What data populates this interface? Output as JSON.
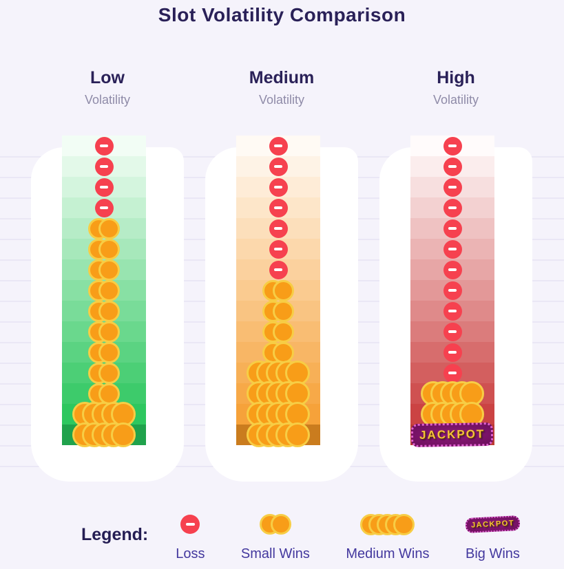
{
  "title": "Slot Volatility Comparison",
  "jackpot_text": "JACKPOT",
  "columns": [
    {
      "id": "low",
      "title": "Low",
      "subtitle": "Volatility",
      "colors": {
        "top": "#f2fdf5",
        "bottom": "#2ec75f",
        "last": "#20a24c"
      }
    },
    {
      "id": "medium",
      "title": "Medium",
      "subtitle": "Volatility",
      "colors": {
        "top": "#fffaf4",
        "bottom": "#f6a23a",
        "last": "#ca7c1e"
      }
    },
    {
      "id": "high",
      "title": "High",
      "subtitle": "Volatility",
      "colors": {
        "top": "#fffbfb",
        "bottom": "#cb4343",
        "last": "#bc3b33"
      }
    }
  ],
  "legend": {
    "label": "Legend:",
    "items": [
      {
        "type": "loss",
        "label": "Loss"
      },
      {
        "type": "small_win",
        "label": "Small Wins",
        "coins": 2
      },
      {
        "type": "medium_win",
        "label": "Medium Wins",
        "coins": 5
      },
      {
        "type": "big_win",
        "label": "Big Wins",
        "badge_text": "JACKPOT"
      }
    ]
  },
  "ui_colors": {
    "background": "#f5f3fb",
    "grid_line": "#e8e4f3",
    "backing_white": "#ffffff",
    "title_text": "#2a2158",
    "subtitle_text": "#8f8ba8",
    "legend_item_text": "#43389e",
    "loss_red": "#f6414f",
    "coin_orange": "#f89d18",
    "coin_gold": "#f7cd45",
    "jackpot_purple": "#6e0f5e",
    "jackpot_gold": "#f5c03c"
  },
  "chart_data": {
    "type": "table",
    "title": "Slot Volatility Comparison",
    "categories": [
      "Low Volatility",
      "Medium Volatility",
      "High Volatility"
    ],
    "outcome_types": [
      "loss",
      "small_win",
      "medium_win",
      "big_win"
    ],
    "rows_per_column": 15,
    "legend_entries": [
      "Loss",
      "Small Wins",
      "Medium Wins",
      "Big Wins"
    ],
    "series": [
      {
        "name": "Low Volatility",
        "outcomes": [
          "loss",
          "loss",
          "loss",
          "loss",
          "small_win",
          "small_win",
          "small_win",
          "small_win",
          "small_win",
          "small_win",
          "small_win",
          "small_win",
          "small_win",
          "medium_win",
          "medium_win"
        ],
        "counts": {
          "loss": 4,
          "small_win": 9,
          "medium_win": 2,
          "big_win": 0
        }
      },
      {
        "name": "Medium Volatility",
        "outcomes": [
          "loss",
          "loss",
          "loss",
          "loss",
          "loss",
          "loss",
          "loss",
          "small_win",
          "small_win",
          "small_win",
          "small_win",
          "medium_win",
          "medium_win",
          "medium_win",
          "medium_win"
        ],
        "counts": {
          "loss": 7,
          "small_win": 4,
          "medium_win": 4,
          "big_win": 0
        }
      },
      {
        "name": "High Volatility",
        "outcomes": [
          "loss",
          "loss",
          "loss",
          "loss",
          "loss",
          "loss",
          "loss",
          "loss",
          "loss",
          "loss",
          "loss",
          "loss",
          "medium_win",
          "medium_win",
          "big_win"
        ],
        "counts": {
          "loss": 12,
          "small_win": 0,
          "medium_win": 2,
          "big_win": 1
        }
      }
    ]
  }
}
